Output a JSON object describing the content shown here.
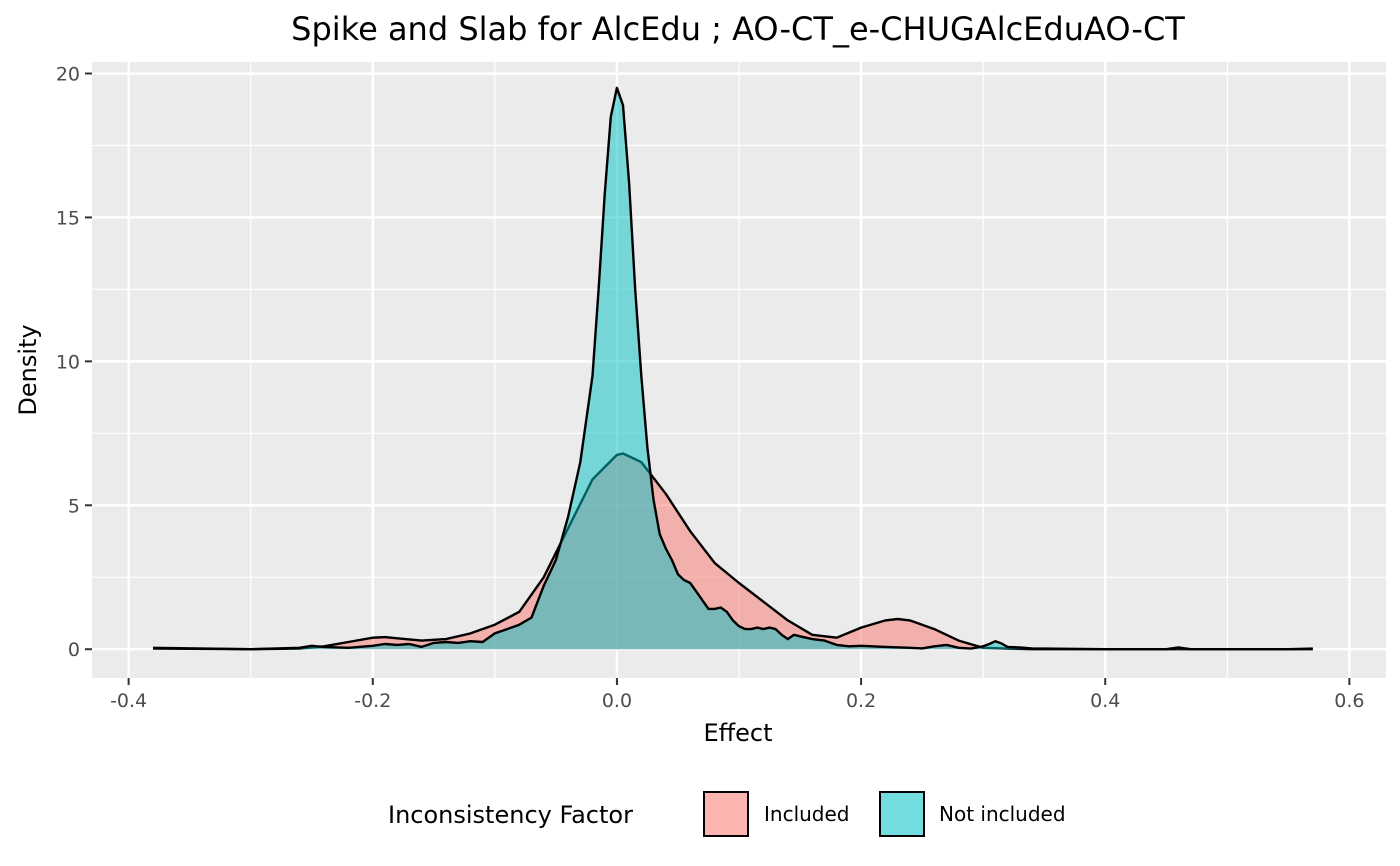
{
  "chart_data": {
    "type": "area",
    "title": "Spike and Slab for AlcEdu ; AO-CT_e-CHUGAlcEduAO-CT",
    "xlabel": "Effect",
    "ylabel": "Density",
    "xlim": [
      -0.4,
      0.6
    ],
    "ylim": [
      -1,
      20.4
    ],
    "x_ticks": [
      -0.4,
      -0.2,
      0.0,
      0.2,
      0.4,
      0.6
    ],
    "x_tick_labels": [
      "-0.4",
      "-0.2",
      "0.0",
      "0.2",
      "0.4",
      "0.6"
    ],
    "y_ticks": [
      0,
      5,
      10,
      15,
      20
    ],
    "y_tick_labels": [
      "0",
      "5",
      "10",
      "15",
      "20"
    ],
    "grid": true,
    "legend": {
      "title": "Inconsistency Factor",
      "position": "bottom",
      "entries": [
        "Included",
        "Not included"
      ]
    },
    "colors": {
      "included": "#F8766D",
      "not_included": "#00BFC4",
      "panel": "#EBEBEB",
      "grid": "#FFFFFF"
    },
    "series": [
      {
        "name": "Included",
        "x": [
          -0.38,
          -0.3,
          -0.26,
          -0.24,
          -0.22,
          -0.2,
          -0.19,
          -0.18,
          -0.16,
          -0.14,
          -0.12,
          -0.1,
          -0.08,
          -0.06,
          -0.04,
          -0.02,
          0.0,
          0.005,
          0.02,
          0.04,
          0.06,
          0.08,
          0.1,
          0.12,
          0.14,
          0.16,
          0.18,
          0.2,
          0.22,
          0.23,
          0.24,
          0.26,
          0.28,
          0.3,
          0.32,
          0.34,
          0.4,
          0.5,
          0.57
        ],
        "y": [
          0.05,
          0.0,
          0.02,
          0.1,
          0.25,
          0.4,
          0.42,
          0.38,
          0.3,
          0.35,
          0.55,
          0.85,
          1.3,
          2.5,
          4.2,
          5.9,
          6.75,
          6.8,
          6.5,
          5.4,
          4.1,
          3.0,
          2.3,
          1.65,
          1.0,
          0.5,
          0.4,
          0.75,
          1.0,
          1.05,
          1.0,
          0.7,
          0.3,
          0.05,
          0.02,
          0.0,
          0.0,
          0.0,
          0.0
        ]
      },
      {
        "name": "Not included",
        "x": [
          -0.38,
          -0.3,
          -0.26,
          -0.25,
          -0.24,
          -0.22,
          -0.2,
          -0.19,
          -0.18,
          -0.17,
          -0.16,
          -0.15,
          -0.14,
          -0.13,
          -0.12,
          -0.11,
          -0.1,
          -0.09,
          -0.08,
          -0.07,
          -0.06,
          -0.05,
          -0.04,
          -0.03,
          -0.02,
          -0.015,
          -0.01,
          -0.005,
          0.0,
          0.005,
          0.01,
          0.015,
          0.02,
          0.025,
          0.03,
          0.035,
          0.04,
          0.045,
          0.05,
          0.055,
          0.06,
          0.065,
          0.07,
          0.075,
          0.08,
          0.085,
          0.09,
          0.095,
          0.1,
          0.105,
          0.11,
          0.115,
          0.12,
          0.125,
          0.13,
          0.135,
          0.14,
          0.145,
          0.15,
          0.155,
          0.16,
          0.17,
          0.18,
          0.19,
          0.2,
          0.22,
          0.24,
          0.25,
          0.26,
          0.27,
          0.28,
          0.29,
          0.3,
          0.305,
          0.31,
          0.315,
          0.32,
          0.33,
          0.34,
          0.4,
          0.45,
          0.46,
          0.47,
          0.5,
          0.55,
          0.57
        ],
        "y": [
          0.02,
          0.0,
          0.05,
          0.12,
          0.08,
          0.05,
          0.12,
          0.18,
          0.15,
          0.18,
          0.08,
          0.22,
          0.25,
          0.22,
          0.28,
          0.25,
          0.55,
          0.7,
          0.85,
          1.1,
          2.2,
          3.1,
          4.6,
          6.5,
          9.5,
          12.5,
          15.8,
          18.5,
          19.5,
          18.9,
          16.2,
          12.5,
          9.5,
          7.0,
          5.2,
          4.0,
          3.5,
          3.1,
          2.6,
          2.4,
          2.3,
          2.0,
          1.7,
          1.4,
          1.4,
          1.45,
          1.3,
          1.0,
          0.8,
          0.7,
          0.7,
          0.75,
          0.7,
          0.75,
          0.7,
          0.5,
          0.35,
          0.5,
          0.45,
          0.4,
          0.35,
          0.3,
          0.15,
          0.1,
          0.12,
          0.08,
          0.05,
          0.03,
          0.1,
          0.15,
          0.05,
          0.02,
          0.1,
          0.18,
          0.28,
          0.2,
          0.08,
          0.06,
          0.03,
          0.0,
          0.0,
          0.06,
          0.0,
          0.0,
          0.0,
          0.02
        ]
      }
    ]
  }
}
